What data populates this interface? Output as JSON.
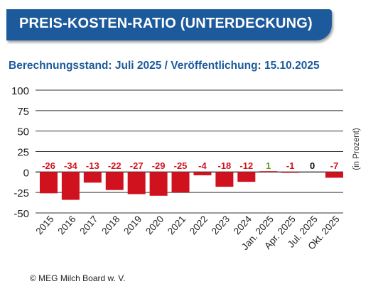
{
  "header": {
    "title": "PREIS-KOSTEN-RATIO (UNTERDECKUNG)",
    "subtitle": "Berechnungsstand: Juli 2025 / Veröffentlichung: 15.10.2025"
  },
  "footer": {
    "source": "© MEG Milch Board w. V."
  },
  "colors": {
    "banner": "#1d5a9c",
    "bar": "#d0121f",
    "negative_label": "#d0121f",
    "positive_label": "#5a9a1a",
    "zero_label": "#111111"
  },
  "chart_data": {
    "type": "bar",
    "categories": [
      "2015",
      "2016",
      "2017",
      "2018",
      "2019",
      "2020",
      "2021",
      "2022",
      "2023",
      "2024",
      "Jan. 2025",
      "Apr. 2025",
      "Jul. 2025",
      "Okt. 2025"
    ],
    "values": [
      -26,
      -34,
      -13,
      -22,
      -27,
      -29,
      -25,
      -4,
      -18,
      -12,
      1,
      -1,
      0,
      -7
    ],
    "data_labels": [
      "-26",
      "-34",
      "-13",
      "-22",
      "-27",
      "-29",
      "-25",
      "-4",
      "-18",
      "-12",
      "1",
      "-1",
      "0",
      "-7"
    ],
    "ylabel": "(in Prozent)",
    "ylim": [
      -50,
      100
    ],
    "yticks": [
      100,
      75,
      50,
      25,
      0,
      -25,
      -50
    ],
    "ytick_labels": [
      "100",
      "75",
      "50",
      "25",
      "0",
      "-25",
      "-50"
    ],
    "grid": true
  }
}
